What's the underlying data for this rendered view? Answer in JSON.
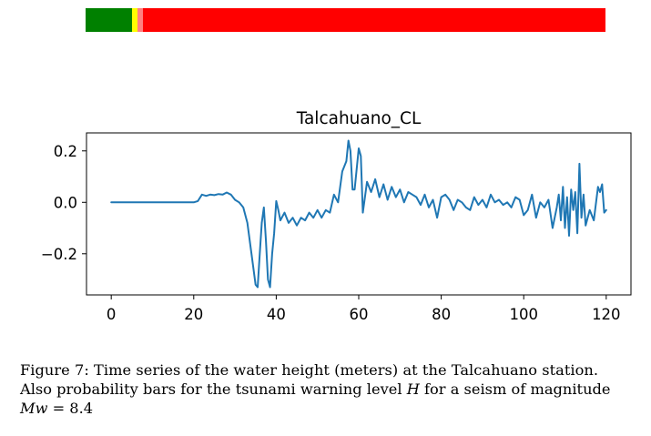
{
  "probability_bar": {
    "segments": [
      {
        "level": "green",
        "color": "#008000",
        "fraction": 0.09
      },
      {
        "level": "yellow",
        "color": "#ffff00",
        "fraction": 0.01
      },
      {
        "level": "orange",
        "color": "#ff8080",
        "fraction": 0.01
      },
      {
        "level": "red",
        "color": "#ff0000",
        "fraction": 0.89
      }
    ]
  },
  "chart_data": {
    "type": "line",
    "title": "Talcahuano_CL",
    "xlabel": "",
    "ylabel": "",
    "xlim": [
      -6,
      126
    ],
    "ylim": [
      -0.36,
      0.27
    ],
    "xticks": [
      0,
      20,
      40,
      60,
      80,
      100,
      120
    ],
    "yticks": [
      -0.2,
      0.0,
      0.2
    ],
    "ytick_labels": [
      "−0.2",
      "0.0",
      "0.2"
    ],
    "line_color": "#1f77b4",
    "series": [
      {
        "name": "water height",
        "x": [
          0,
          20,
          21,
          22,
          23,
          24,
          25,
          26,
          27,
          28,
          29,
          30,
          31,
          32,
          33,
          34,
          35,
          35.5,
          36,
          36.5,
          37,
          37.5,
          38,
          38.5,
          39,
          39.5,
          40,
          40.5,
          41,
          42,
          43,
          44,
          45,
          46,
          47,
          48,
          49,
          50,
          51,
          52,
          53,
          54,
          55,
          56,
          57,
          57.5,
          58,
          58.5,
          59,
          60,
          60.5,
          61,
          62,
          63,
          64,
          65,
          66,
          67,
          68,
          69,
          70,
          71,
          72,
          73,
          74,
          75,
          76,
          77,
          78,
          79,
          80,
          81,
          82,
          83,
          84,
          85,
          86,
          87,
          88,
          89,
          90,
          91,
          92,
          93,
          94,
          95,
          96,
          97,
          98,
          99,
          100,
          101,
          102,
          103,
          104,
          105,
          106,
          107,
          108,
          108.5,
          109,
          109.5,
          110,
          110.5,
          111,
          111.5,
          112,
          112.5,
          113,
          113.5,
          114,
          114.5,
          115,
          116,
          117,
          118,
          118.5,
          119,
          119.5,
          120
        ],
        "y": [
          0.0,
          0.0,
          0.005,
          0.03,
          0.025,
          0.03,
          0.028,
          0.032,
          0.03,
          0.038,
          0.03,
          0.01,
          0.0,
          -0.02,
          -0.08,
          -0.2,
          -0.32,
          -0.33,
          -0.2,
          -0.08,
          -0.02,
          -0.15,
          -0.3,
          -0.33,
          -0.2,
          -0.12,
          0.005,
          -0.03,
          -0.07,
          -0.04,
          -0.08,
          -0.06,
          -0.09,
          -0.06,
          -0.07,
          -0.04,
          -0.06,
          -0.03,
          -0.06,
          -0.03,
          -0.04,
          0.03,
          0.0,
          0.12,
          0.16,
          0.24,
          0.2,
          0.05,
          0.05,
          0.21,
          0.18,
          -0.04,
          0.08,
          0.04,
          0.09,
          0.02,
          0.07,
          0.01,
          0.06,
          0.02,
          0.05,
          0.0,
          0.04,
          0.03,
          0.02,
          -0.01,
          0.03,
          -0.02,
          0.01,
          -0.06,
          0.02,
          0.03,
          0.01,
          -0.03,
          0.01,
          0.0,
          -0.02,
          -0.03,
          0.02,
          -0.01,
          0.01,
          -0.02,
          0.03,
          0.0,
          0.01,
          -0.01,
          0.0,
          -0.02,
          0.02,
          0.01,
          -0.05,
          -0.03,
          0.03,
          -0.06,
          0.0,
          -0.02,
          0.01,
          -0.1,
          -0.02,
          0.03,
          -0.07,
          0.06,
          -0.1,
          0.02,
          -0.13,
          0.05,
          -0.03,
          0.04,
          -0.12,
          0.15,
          -0.06,
          0.03,
          -0.09,
          -0.03,
          -0.07,
          0.06,
          0.04,
          0.07,
          -0.04,
          -0.03
        ]
      }
    ]
  },
  "caption": {
    "line1": "Figure 7:  Time series of the water height (meters) at the Talcahuano station.",
    "line2_prefix": "Also probability bars for the tsunami warning level ",
    "line2_var": "H",
    "line2_suffix": " for a seism of magnitude",
    "line3_var": "Mw",
    "line3_suffix": " = 8.4"
  }
}
